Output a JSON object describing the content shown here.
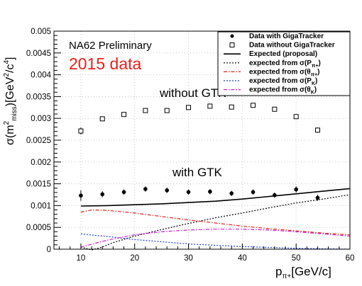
{
  "chart_data": {
    "type": "scatter",
    "ylabel_main": "σ(m",
    "ylabel_sup1": "2",
    "ylabel_sub": "miss",
    "ylabel_mid": ")[GeV",
    "ylabel_sup2": "2",
    "ylabel_mid2": "/c",
    "ylabel_sup3": "4",
    "ylabel_end": "]",
    "xlabel_main": "p",
    "xlabel_sub": "π+",
    "xlabel_end": "[GeV/c]",
    "xlim": [
      5,
      60
    ],
    "ylim": [
      0,
      0.005
    ],
    "xticks": [
      10,
      20,
      30,
      40,
      50,
      60
    ],
    "yticks": [
      0,
      0.0005,
      0.001,
      0.0015,
      0.002,
      0.0025,
      0.003,
      0.0035,
      0.004,
      0.0045,
      0.005
    ],
    "ytick_labels": [
      "0",
      "0.0005",
      "0.001",
      "0.0015",
      "0.002",
      "0.0025",
      "0.003",
      "0.0035",
      "0.004",
      "0.0045",
      "0.005"
    ],
    "preliminary_label": "NA62 Preliminary",
    "data_label": "2015 data",
    "data_label_color": "#e8201c",
    "annotations": {
      "without": "without GTK",
      "with": "with GTK"
    },
    "series": [
      {
        "name": "Data with GigaTracker",
        "marker": "filled-circle",
        "x": [
          10,
          14,
          18,
          22,
          26,
          30,
          34,
          38,
          42,
          46,
          50,
          54
        ],
        "y": [
          0.00123,
          0.00126,
          0.00131,
          0.00138,
          0.00135,
          0.00131,
          0.00132,
          0.00128,
          0.00131,
          0.00124,
          0.00137,
          0.00118
        ],
        "err": [
          0.00012,
          7e-05,
          6e-05,
          6e-05,
          6e-05,
          6e-05,
          6e-05,
          6e-05,
          6e-05,
          6e-05,
          7e-05,
          7e-05
        ]
      },
      {
        "name": "Data without GigaTracker",
        "marker": "open-square",
        "x": [
          10,
          14,
          18,
          22,
          26,
          30,
          34,
          38,
          42,
          46,
          50,
          54
        ],
        "y": [
          0.00271,
          0.00299,
          0.00309,
          0.00318,
          0.00318,
          0.00325,
          0.00328,
          0.00326,
          0.0033,
          0.00321,
          0.00304,
          0.00273
        ],
        "err": [
          8e-05,
          5e-05,
          4e-05,
          4e-05,
          4e-05,
          4e-05,
          4e-05,
          4e-05,
          4e-05,
          4e-05,
          5e-05,
          6e-05
        ]
      },
      {
        "name": "Expected (proposal)",
        "line": "solid",
        "color": "#000000",
        "x": [
          10,
          15,
          20,
          25,
          30,
          35,
          40,
          45,
          50,
          55,
          60
        ],
        "y": [
          0.00099,
          0.001,
          0.00102,
          0.00104,
          0.00107,
          0.0011,
          0.00115,
          0.00121,
          0.00127,
          0.00133,
          0.00139
        ]
      },
      {
        "name": "expected from σ(P",
        "sub": "π+",
        "line": "dotted",
        "color": "#000000",
        "x": [
          10,
          12,
          14,
          16,
          20,
          25,
          30,
          35,
          40,
          45,
          50,
          55,
          60
        ],
        "y": [
          5e-05,
          -5e-05,
          5e-05,
          0.00015,
          0.0003,
          0.00045,
          0.00059,
          0.00072,
          0.00083,
          0.00095,
          0.00106,
          0.00115,
          0.00125
        ]
      },
      {
        "name": "expected from σ(θ",
        "sub": "π+",
        "line": "dash-dot",
        "color": "#e8201c",
        "x": [
          10,
          12,
          15,
          20,
          25,
          30,
          35,
          40,
          45,
          50,
          55,
          60
        ],
        "y": [
          0.00085,
          0.0009,
          0.00089,
          0.00083,
          0.00075,
          0.00067,
          0.0006,
          0.00053,
          0.00047,
          0.00042,
          0.00037,
          0.00033
        ]
      },
      {
        "name": "expected from σ(P",
        "sub": "K",
        "line": "dotted",
        "color": "#1f3fd8",
        "x": [
          10,
          15,
          20,
          25,
          30,
          35,
          40,
          45,
          50,
          55,
          60
        ],
        "y": [
          0.00035,
          0.00029,
          0.00022,
          0.00017,
          0.00012,
          9e-05,
          6e-05,
          4e-05,
          2e-05,
          1e-05,
          0.0
        ]
      },
      {
        "name": "expected from σ(θ",
        "sub": "K",
        "line": "dash-dot",
        "color": "#d020d0",
        "x": [
          10,
          15,
          20,
          25,
          30,
          35,
          40,
          45,
          50,
          55,
          60
        ],
        "y": [
          5e-05,
          0.00021,
          0.00033,
          0.0004,
          0.00044,
          0.00046,
          0.00046,
          0.00044,
          0.0004,
          0.00035,
          0.0003
        ]
      }
    ],
    "grid": true,
    "legend_position": "top-right"
  }
}
